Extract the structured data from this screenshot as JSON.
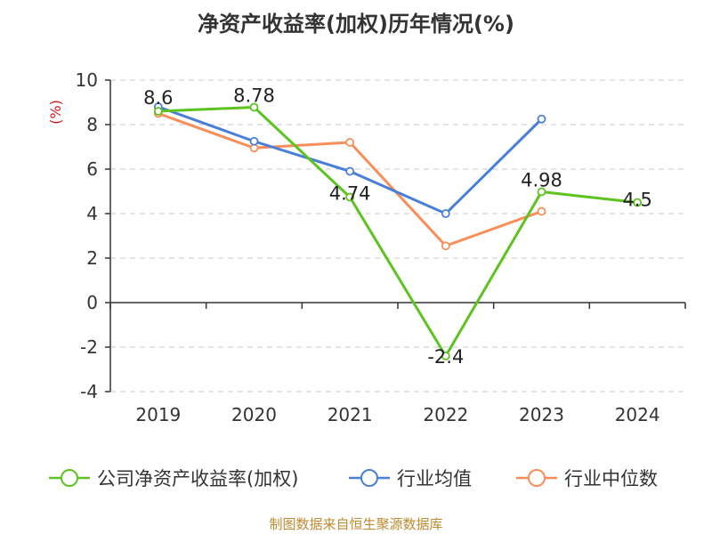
{
  "chart_data": {
    "type": "line",
    "title": "净资产收益率(加权)历年情况(%)",
    "ylabel": "(%)",
    "xlabel": "",
    "categories": [
      "2019",
      "2020",
      "2021",
      "2022",
      "2023",
      "2024"
    ],
    "ylim": [
      -4,
      10
    ],
    "yticks": [
      10,
      8,
      6,
      4,
      2,
      0,
      -2,
      -4
    ],
    "grid": "horizontal-dashed",
    "legend_position": "bottom",
    "series": [
      {
        "name": "公司净资产收益率(加权)",
        "color": "#5cc320",
        "values": [
          8.6,
          8.78,
          4.74,
          -2.4,
          4.98,
          4.5
        ],
        "labels": [
          "8.6",
          "8.78",
          "4.74",
          "-2.4",
          "4.98",
          "4.5"
        ]
      },
      {
        "name": "行业均值",
        "color": "#4a7fd8",
        "values": [
          8.8,
          7.25,
          5.9,
          4.0,
          8.25,
          null
        ]
      },
      {
        "name": "行业中位数",
        "color": "#f98e58",
        "values": [
          8.5,
          6.95,
          7.2,
          2.55,
          4.1,
          null
        ]
      }
    ],
    "source": "制图数据来自恒生聚源数据库"
  }
}
